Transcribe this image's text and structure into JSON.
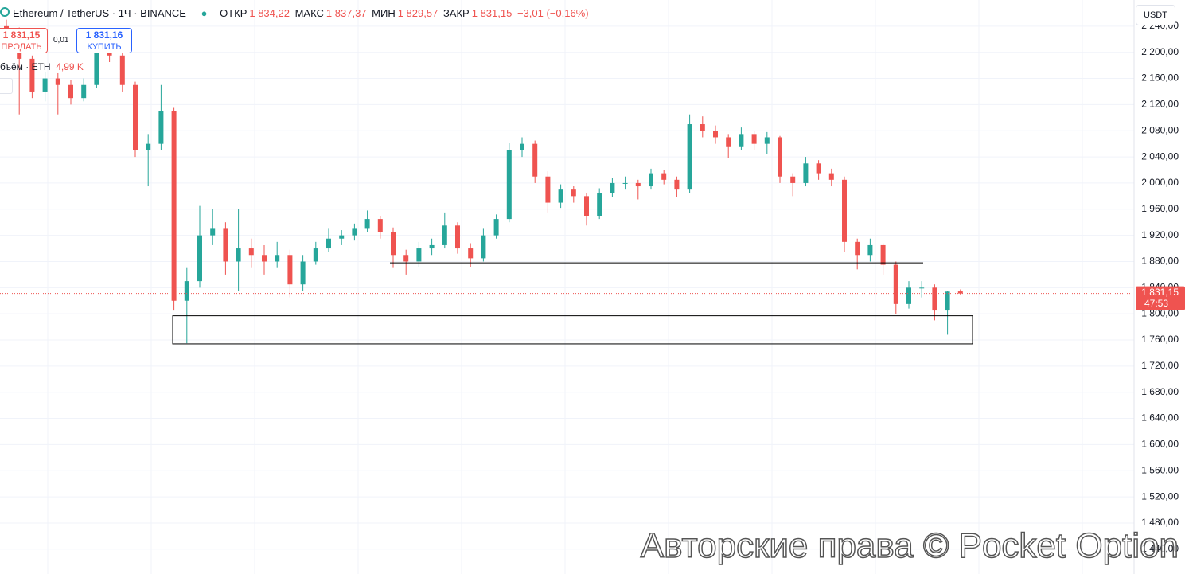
{
  "header": {
    "symbol": "Ethereum / TetherUS · 1Ч · BINANCE",
    "open_label": "ОТКР",
    "open": "1 834,22",
    "high_label": "МАКС",
    "high": "1 837,37",
    "low_label": "МИН",
    "low": "1 829,57",
    "close_label": "ЗАКР",
    "close": "1 831,15",
    "change": "−3,01 (−0,16%)"
  },
  "trade": {
    "sell_price": "1 831,15",
    "sell": "ПРОДАТЬ",
    "spread": "0,01",
    "buy_price": "1 831,16",
    "buy": "КУПИТЬ"
  },
  "volume": {
    "label": "бъём · ETH",
    "value": "4,99 K"
  },
  "currency": "USDT",
  "watermark": "Авторские права © Pocket Option",
  "chart_data": {
    "type": "candlestick",
    "open": [
      2240,
      2230,
      2190,
      2140,
      2160,
      2150,
      2130,
      2150,
      2200,
      2195,
      2150,
      2050,
      2060,
      2110,
      1820,
      1850,
      1920,
      1930,
      1880,
      1900,
      1890,
      1880,
      1890,
      1845,
      1880,
      1900,
      1915,
      1920,
      1930,
      1945,
      1925,
      1890,
      1880,
      1900,
      1905,
      1935,
      1900,
      1885,
      1920,
      1945,
      2050,
      2060,
      2010,
      1970,
      1990,
      1980,
      1950,
      1985,
      2000,
      2000,
      1995,
      2015,
      2005,
      1990,
      2090,
      2080,
      2070,
      2055,
      2075,
      2060,
      2070,
      2010,
      2000,
      2030,
      2015,
      2005,
      1910,
      1890,
      1905,
      1875,
      1815,
      1840,
      1840,
      1805,
      1834.22
    ],
    "high": [
      2250,
      2238,
      2195,
      2170,
      2168,
      2158,
      2160,
      2215,
      2210,
      2200,
      2155,
      2075,
      2150,
      2115,
      1870,
      1965,
      1960,
      1940,
      1960,
      1915,
      1905,
      1910,
      1898,
      1890,
      1910,
      1930,
      1928,
      1938,
      1958,
      1950,
      1932,
      1898,
      1910,
      1915,
      1955,
      1940,
      1908,
      1930,
      1952,
      2062,
      2070,
      2065,
      2018,
      1998,
      1995,
      1985,
      1992,
      2008,
      2010,
      2005,
      2022,
      2020,
      2010,
      2105,
      2102,
      2088,
      2075,
      2085,
      2080,
      2078,
      2072,
      2015,
      2040,
      2035,
      2022,
      2010,
      1915,
      1915,
      1908,
      1880,
      1850,
      1850,
      1845,
      1835,
      1837.37
    ],
    "low": [
      2225,
      2105,
      2130,
      2125,
      2105,
      2120,
      2125,
      2145,
      2185,
      2140,
      2040,
      1995,
      2050,
      1805,
      1755,
      1840,
      1905,
      1860,
      1835,
      1870,
      1860,
      1870,
      1825,
      1835,
      1875,
      1895,
      1905,
      1912,
      1925,
      1915,
      1870,
      1860,
      1872,
      1890,
      1900,
      1892,
      1872,
      1880,
      1915,
      1940,
      2040,
      2000,
      1955,
      1962,
      1970,
      1935,
      1945,
      1978,
      1990,
      1975,
      1990,
      1998,
      1978,
      1985,
      2070,
      2060,
      2038,
      2050,
      2050,
      2045,
      2000,
      1980,
      1995,
      2005,
      1995,
      1895,
      1868,
      1880,
      1860,
      1800,
      1808,
      1825,
      1790,
      1768,
      1829.57
    ],
    "close": [
      2230,
      2190,
      2140,
      2160,
      2150,
      2130,
      2150,
      2200,
      2195,
      2150,
      2050,
      2060,
      2110,
      1820,
      1850,
      1920,
      1930,
      1880,
      1900,
      1890,
      1880,
      1890,
      1845,
      1880,
      1900,
      1915,
      1920,
      1930,
      1945,
      1925,
      1890,
      1880,
      1900,
      1905,
      1935,
      1900,
      1885,
      1920,
      1945,
      2050,
      2060,
      2010,
      1970,
      1990,
      1980,
      1950,
      1985,
      2000,
      2000,
      1995,
      2015,
      2005,
      1990,
      2090,
      2080,
      2070,
      2055,
      2075,
      2060,
      2070,
      2010,
      2000,
      2030,
      2015,
      2005,
      1910,
      1890,
      1905,
      1875,
      1815,
      1840,
      1840,
      1805,
      1834,
      1831.15
    ],
    "up_color": "#26a69a",
    "down_color": "#ef5350",
    "ylim": [
      1402,
      2280
    ],
    "yticks": [
      {
        "value": 1440,
        "label": "1 440,00"
      },
      {
        "value": 1480,
        "label": "1 480,00"
      },
      {
        "value": 1520,
        "label": "1 520,00"
      },
      {
        "value": 1560,
        "label": "1 560,00"
      },
      {
        "value": 1600,
        "label": "1 600,00"
      },
      {
        "value": 1640,
        "label": "1 640,00"
      },
      {
        "value": 1680,
        "label": "1 680,00"
      },
      {
        "value": 1720,
        "label": "1 720,00"
      },
      {
        "value": 1760,
        "label": "1 760,00"
      },
      {
        "value": 1800,
        "label": "1 800,00"
      },
      {
        "value": 1840,
        "label": "1 840,00"
      },
      {
        "value": 1880,
        "label": "1 880,00"
      },
      {
        "value": 1920,
        "label": "1 920,00"
      },
      {
        "value": 1960,
        "label": "1 960,00"
      },
      {
        "value": 2000,
        "label": "2 000,00"
      },
      {
        "value": 2040,
        "label": "2 040,00"
      },
      {
        "value": 2080,
        "label": "2 080,00"
      },
      {
        "value": 2120,
        "label": "2 120,00"
      },
      {
        "value": 2160,
        "label": "2 160,00"
      },
      {
        "value": 2200,
        "label": "2 200,00"
      },
      {
        "value": 2240,
        "label": "2 240,00"
      }
    ],
    "grid": true,
    "last_price_label": "1 831,15",
    "countdown": "47:53",
    "hline": 1878,
    "zone": [
      1754,
      1797
    ]
  }
}
